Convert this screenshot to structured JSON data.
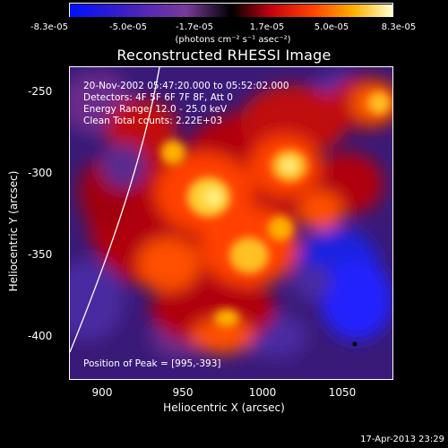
{
  "colorbar": {
    "ticks": [
      "-8.3e-05",
      "-5.0e-05",
      "-1.7e-05",
      "1.7e-05",
      "5.0e-05",
      "8.3e-05"
    ],
    "units": "(photons cm⁻² s⁻¹ asec⁻²)",
    "colors": [
      "#0010ff",
      "#3a1aa0",
      "#6a2a8a",
      "#000000",
      "#b00010",
      "#ff3000",
      "#ffb000",
      "#ffff80"
    ]
  },
  "title": "Reconstructed RHESSI Image",
  "info": {
    "line1": "20-Nov-2002 05:47:20.000 to 05:52:02.000",
    "line2": "Detectors: 4F 5F 6F 7F 8F, Att 0",
    "line3": "Energy Range: 12.0 - 25.0 keV",
    "line4": "Clean     Total counts: 2.22E+03",
    "peak": "Position of Peak = [995,-393]"
  },
  "axes": {
    "xlabel": "Heliocentric X (arcsec)",
    "ylabel": "Heliocentric Y (arcsec)",
    "xticks": [
      "900",
      "950",
      "1000",
      "1050"
    ],
    "yticks": [
      "-250",
      "-300",
      "-350",
      "-400"
    ]
  },
  "timestamp": "17-Apr-2013 23:29"
}
